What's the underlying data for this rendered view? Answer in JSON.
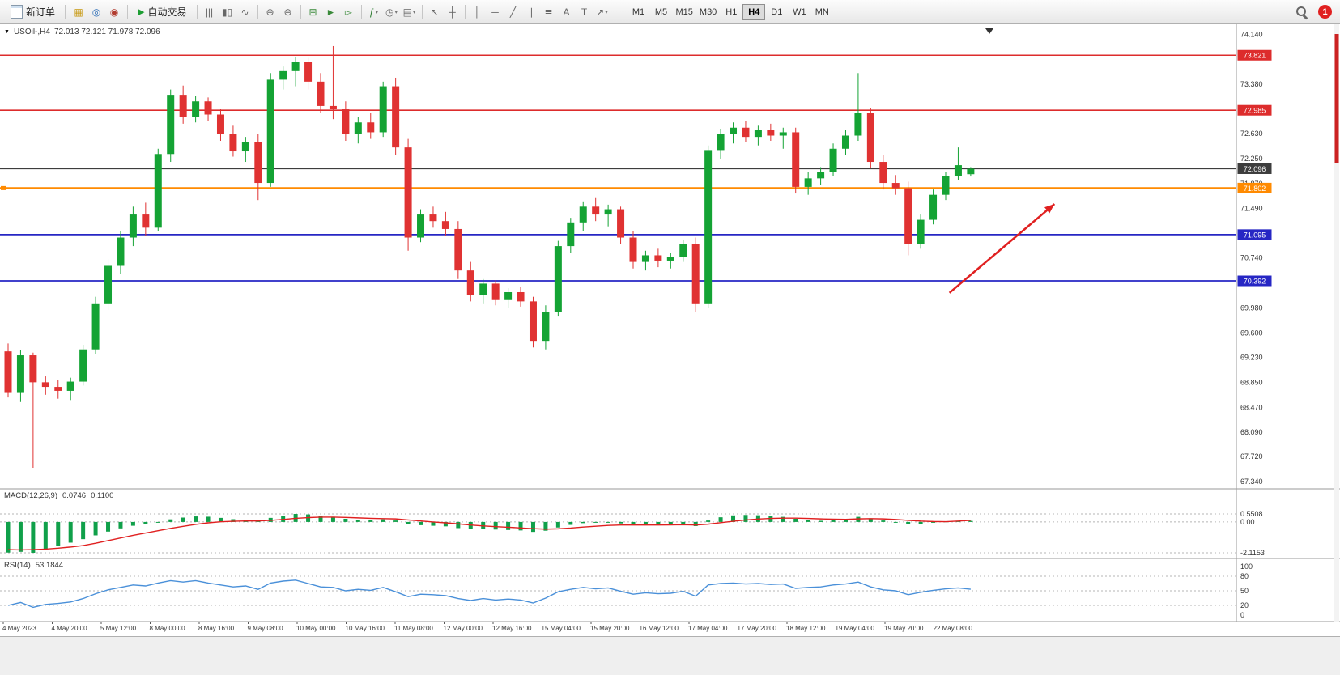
{
  "toolbar": {
    "new_order": {
      "label": "新订单"
    },
    "autotrading": {
      "label": "自动交易"
    },
    "window_icons": [
      {
        "name": "new-chart-icon",
        "glyph": "▦",
        "color": "#c79810"
      },
      {
        "name": "profiles-icon",
        "glyph": "◎",
        "color": "#2f6fb7"
      },
      {
        "name": "market-watch-icon",
        "glyph": "◉",
        "color": "#b23b2e"
      }
    ],
    "tool_icons": [
      {
        "sep": true
      },
      {
        "name": "bar-chart-icon",
        "glyph": "|||"
      },
      {
        "name": "candlestick-icon",
        "glyph": "▮▯"
      },
      {
        "name": "line-chart-icon",
        "glyph": "∿"
      },
      {
        "sep": true
      },
      {
        "name": "zoom-in-icon",
        "glyph": "⊕"
      },
      {
        "name": "zoom-out-icon",
        "glyph": "⊖"
      },
      {
        "sep": true
      },
      {
        "name": "tile-windows-icon",
        "glyph": "⊞",
        "color": "#3a8a3a"
      },
      {
        "name": "auto-scroll-icon",
        "glyph": "►",
        "color": "#3a8a3a"
      },
      {
        "name": "chart-shift-icon",
        "glyph": "▻",
        "color": "#3a8a3a"
      },
      {
        "sep": true
      },
      {
        "name": "indicators-icon",
        "glyph": "ƒ",
        "color": "#2e7d32",
        "dropdown": true
      },
      {
        "name": "periods-icon",
        "glyph": "◷",
        "dropdown": true
      },
      {
        "name": "templates-icon",
        "glyph": "▤",
        "dropdown": true
      },
      {
        "sep": true
      },
      {
        "name": "cursor-icon",
        "glyph": "↖"
      },
      {
        "name": "crosshair-icon",
        "glyph": "┼"
      },
      {
        "sep": true
      },
      {
        "name": "vertical-line-icon",
        "glyph": "│"
      },
      {
        "name": "horizontal-line-icon",
        "glyph": "─"
      },
      {
        "name": "trendline-icon",
        "glyph": "╱"
      },
      {
        "name": "channel-icon",
        "glyph": "∥"
      },
      {
        "name": "fibonacci-icon",
        "glyph": "≣"
      },
      {
        "name": "text-icon",
        "glyph": "A"
      },
      {
        "name": "label-icon",
        "glyph": "T"
      },
      {
        "name": "arrows-icon",
        "glyph": "↗",
        "dropdown": true
      },
      {
        "sep": true
      }
    ],
    "timeframes": [
      "M1",
      "M5",
      "M15",
      "M30",
      "H1",
      "H4",
      "D1",
      "W1",
      "MN"
    ],
    "active_timeframe": "H4",
    "notification_count": "1"
  },
  "chart": {
    "symbol_period": "USOil-,H4",
    "ohlc": "72.013 72.121 71.978 72.096"
  },
  "indicators": {
    "macd": {
      "label": "MACD(12,26,9)",
      "value_main": "0.0746",
      "value_signal": "0.1100",
      "scale": [
        "0.5508",
        "0.00",
        "-2.1153"
      ]
    },
    "rsi": {
      "label": "RSI(14)",
      "value": "53.1844",
      "scale": [
        "100",
        "80",
        "50",
        "20",
        "0"
      ]
    }
  },
  "chart_data": {
    "type": "candlestick",
    "symbol": "USOil",
    "period": "H4",
    "ylim": [
      67.28,
      74.23
    ],
    "price_ticks": [
      "74.140",
      "73.380",
      "72.630",
      "72.250",
      "71.870",
      "71.490",
      "70.740",
      "69.980",
      "69.600",
      "69.230",
      "68.850",
      "68.470",
      "68.090",
      "67.720",
      "67.340"
    ],
    "time_labels": [
      "4 May 2023",
      "4 May 20:00",
      "5 May 12:00",
      "8 May 00:00",
      "8 May 16:00",
      "9 May 08:00",
      "10 May 00:00",
      "10 May 16:00",
      "11 May 08:00",
      "12 May 00:00",
      "12 May 16:00",
      "15 May 04:00",
      "15 May 20:00",
      "16 May 12:00",
      "17 May 04:00",
      "17 May 20:00",
      "18 May 12:00",
      "19 May 04:00",
      "19 May 20:00",
      "22 May 08:00"
    ],
    "levels": [
      {
        "price": 73.821,
        "label": "73.821",
        "color": "#dd2c2c",
        "width": 1.6
      },
      {
        "price": 72.985,
        "label": "72.985",
        "color": "#dd2c2c",
        "width": 1.6
      },
      {
        "price": 72.096,
        "label": "72.096",
        "color": "#3d3d3d",
        "width": 1.2
      },
      {
        "price": 71.802,
        "label": "71.802",
        "color": "#ff8a00",
        "width": 2.2
      },
      {
        "price": 71.095,
        "label": "71.095",
        "color": "#2626c4",
        "width": 1.8
      },
      {
        "price": 70.392,
        "label": "70.392",
        "color": "#2626c4",
        "width": 1.8
      }
    ],
    "colors": {
      "up": "#14a334",
      "down": "#e03232",
      "macd_hist": "#10a04a",
      "macd_signal": "#e02020",
      "rsi_line": "#4a90d9"
    },
    "candles": [
      [
        69.32,
        69.44,
        68.62,
        68.7
      ],
      [
        68.7,
        69.34,
        68.55,
        69.26
      ],
      [
        69.26,
        69.3,
        67.55,
        68.85
      ],
      [
        68.85,
        68.94,
        68.66,
        68.78
      ],
      [
        68.78,
        68.88,
        68.6,
        68.72
      ],
      [
        68.72,
        68.92,
        68.58,
        68.86
      ],
      [
        68.86,
        69.42,
        68.8,
        69.35
      ],
      [
        69.35,
        70.15,
        69.28,
        70.05
      ],
      [
        70.05,
        70.72,
        69.95,
        70.62
      ],
      [
        70.62,
        71.15,
        70.5,
        71.05
      ],
      [
        71.05,
        71.52,
        70.92,
        71.4
      ],
      [
        71.4,
        71.58,
        71.08,
        71.2
      ],
      [
        71.2,
        72.4,
        71.15,
        72.32
      ],
      [
        72.32,
        73.3,
        72.2,
        73.22
      ],
      [
        73.22,
        73.36,
        72.78,
        72.88
      ],
      [
        72.88,
        73.2,
        72.8,
        73.12
      ],
      [
        73.12,
        73.18,
        72.82,
        72.92
      ],
      [
        72.92,
        73.0,
        72.52,
        72.62
      ],
      [
        72.62,
        72.75,
        72.28,
        72.36
      ],
      [
        72.36,
        72.58,
        72.2,
        72.5
      ],
      [
        72.5,
        72.62,
        71.62,
        71.88
      ],
      [
        71.88,
        73.55,
        71.82,
        73.45
      ],
      [
        73.45,
        73.65,
        73.3,
        73.58
      ],
      [
        73.58,
        73.8,
        73.35,
        73.72
      ],
      [
        73.72,
        73.78,
        73.3,
        73.42
      ],
      [
        73.42,
        73.55,
        72.95,
        73.05
      ],
      [
        73.05,
        73.96,
        72.85,
        73.0
      ],
      [
        73.0,
        73.12,
        72.52,
        72.62
      ],
      [
        72.62,
        72.88,
        72.48,
        72.8
      ],
      [
        72.8,
        72.95,
        72.55,
        72.65
      ],
      [
        72.65,
        73.42,
        72.58,
        73.35
      ],
      [
        73.35,
        73.48,
        72.3,
        72.42
      ],
      [
        72.42,
        72.55,
        70.85,
        71.05
      ],
      [
        71.05,
        71.48,
        70.98,
        71.4
      ],
      [
        71.4,
        71.52,
        71.2,
        71.3
      ],
      [
        71.3,
        71.44,
        71.08,
        71.18
      ],
      [
        71.18,
        71.3,
        70.42,
        70.55
      ],
      [
        70.55,
        70.68,
        70.08,
        70.18
      ],
      [
        70.18,
        70.42,
        70.05,
        70.35
      ],
      [
        70.35,
        70.4,
        70.02,
        70.1
      ],
      [
        70.1,
        70.28,
        69.98,
        70.22
      ],
      [
        70.22,
        70.3,
        70.0,
        70.08
      ],
      [
        70.08,
        70.15,
        69.38,
        69.48
      ],
      [
        69.48,
        70.02,
        69.35,
        69.92
      ],
      [
        69.92,
        71.0,
        69.85,
        70.92
      ],
      [
        70.92,
        71.35,
        70.82,
        71.28
      ],
      [
        71.28,
        71.6,
        71.15,
        71.52
      ],
      [
        71.52,
        71.65,
        71.3,
        71.4
      ],
      [
        71.4,
        71.55,
        71.22,
        71.48
      ],
      [
        71.48,
        71.52,
        70.95,
        71.05
      ],
      [
        71.05,
        71.15,
        70.58,
        70.68
      ],
      [
        70.68,
        70.85,
        70.55,
        70.78
      ],
      [
        70.78,
        70.88,
        70.6,
        70.7
      ],
      [
        70.7,
        70.82,
        70.58,
        70.75
      ],
      [
        70.75,
        71.02,
        70.68,
        70.95
      ],
      [
        70.95,
        71.05,
        69.92,
        70.05
      ],
      [
        70.05,
        72.45,
        69.98,
        72.38
      ],
      [
        72.38,
        72.7,
        72.25,
        72.62
      ],
      [
        72.62,
        72.8,
        72.48,
        72.72
      ],
      [
        72.72,
        72.82,
        72.5,
        72.58
      ],
      [
        72.58,
        72.75,
        72.45,
        72.68
      ],
      [
        72.68,
        72.78,
        72.52,
        72.6
      ],
      [
        72.6,
        72.72,
        72.4,
        72.65
      ],
      [
        72.65,
        72.72,
        71.72,
        71.82
      ],
      [
        71.82,
        72.05,
        71.7,
        71.95
      ],
      [
        71.95,
        72.12,
        71.85,
        72.05
      ],
      [
        72.05,
        72.48,
        71.98,
        72.4
      ],
      [
        72.4,
        72.68,
        72.3,
        72.6
      ],
      [
        72.6,
        73.55,
        72.52,
        72.95
      ],
      [
        72.95,
        73.02,
        72.1,
        72.2
      ],
      [
        72.2,
        72.3,
        71.78,
        71.88
      ],
      [
        71.88,
        72.0,
        71.7,
        71.8
      ],
      [
        71.8,
        71.9,
        70.78,
        70.95
      ],
      [
        70.95,
        71.4,
        70.88,
        71.32
      ],
      [
        71.32,
        71.78,
        71.25,
        71.7
      ],
      [
        71.7,
        72.05,
        71.62,
        71.98
      ],
      [
        71.98,
        72.42,
        71.92,
        72.15
      ],
      [
        72.013,
        72.121,
        71.978,
        72.096
      ]
    ],
    "macd": {
      "ylim": [
        -2.1153,
        0.5508
      ],
      "histogram": [
        -2.1,
        -2.05,
        -2.1153,
        -1.85,
        -1.62,
        -1.42,
        -1.18,
        -0.92,
        -0.66,
        -0.44,
        -0.26,
        -0.16,
        -0.03,
        0.18,
        0.3,
        0.38,
        0.36,
        0.28,
        0.19,
        0.15,
        0.08,
        0.28,
        0.42,
        0.5508,
        0.52,
        0.43,
        0.36,
        0.22,
        0.16,
        0.12,
        0.18,
        0.1,
        -0.14,
        -0.22,
        -0.26,
        -0.3,
        -0.42,
        -0.5,
        -0.48,
        -0.52,
        -0.55,
        -0.58,
        -0.68,
        -0.6,
        -0.38,
        -0.2,
        -0.08,
        -0.02,
        -0.02,
        -0.1,
        -0.2,
        -0.23,
        -0.22,
        -0.18,
        -0.12,
        -0.28,
        0.1,
        0.32,
        0.45,
        0.48,
        0.46,
        0.4,
        0.35,
        0.22,
        0.12,
        0.08,
        0.12,
        0.2,
        0.35,
        0.25,
        0.1,
        -0.02,
        -0.15,
        -0.12,
        -0.02,
        0.04,
        0.08,
        0.0746
      ],
      "signal": [
        -1.9,
        -1.92,
        -1.9,
        -1.86,
        -1.8,
        -1.72,
        -1.62,
        -1.46,
        -1.28,
        -1.1,
        -0.92,
        -0.76,
        -0.6,
        -0.44,
        -0.3,
        -0.17,
        -0.06,
        0.01,
        0.05,
        0.07,
        0.07,
        0.11,
        0.17,
        0.25,
        0.3,
        0.33,
        0.33,
        0.31,
        0.28,
        0.25,
        0.23,
        0.21,
        0.14,
        0.07,
        0.0,
        -0.06,
        -0.13,
        -0.21,
        -0.27,
        -0.32,
        -0.36,
        -0.41,
        -0.46,
        -0.49,
        -0.47,
        -0.42,
        -0.35,
        -0.29,
        -0.24,
        -0.21,
        -0.2,
        -0.21,
        -0.21,
        -0.2,
        -0.19,
        -0.21,
        -0.15,
        -0.05,
        0.05,
        0.14,
        0.2,
        0.24,
        0.26,
        0.26,
        0.24,
        0.21,
        0.19,
        0.18,
        0.21,
        0.23,
        0.21,
        0.17,
        0.11,
        0.06,
        0.03,
        0.02,
        0.06,
        0.11
      ]
    },
    "rsi": {
      "ylim": [
        0,
        100
      ],
      "levels": [
        80,
        50,
        20
      ],
      "values": [
        20,
        26,
        16,
        22,
        24,
        27,
        34,
        44,
        52,
        57,
        62,
        60,
        66,
        71,
        68,
        71,
        66,
        62,
        58,
        60,
        53,
        66,
        70,
        72,
        65,
        58,
        57,
        50,
        53,
        51,
        57,
        48,
        38,
        43,
        42,
        40,
        34,
        30,
        34,
        31,
        33,
        31,
        25,
        35,
        48,
        53,
        57,
        54,
        56,
        49,
        43,
        46,
        44,
        45,
        49,
        39,
        62,
        65,
        66,
        64,
        65,
        63,
        64,
        55,
        57,
        58,
        62,
        64,
        68,
        58,
        52,
        50,
        42,
        47,
        51,
        54,
        56,
        53.18
      ]
    },
    "annotation_arrow": {
      "x_from_index": 75.3,
      "price_from": 70.21,
      "x_to_index": 83.7,
      "price_to": 71.56,
      "color": "#e02020"
    }
  }
}
